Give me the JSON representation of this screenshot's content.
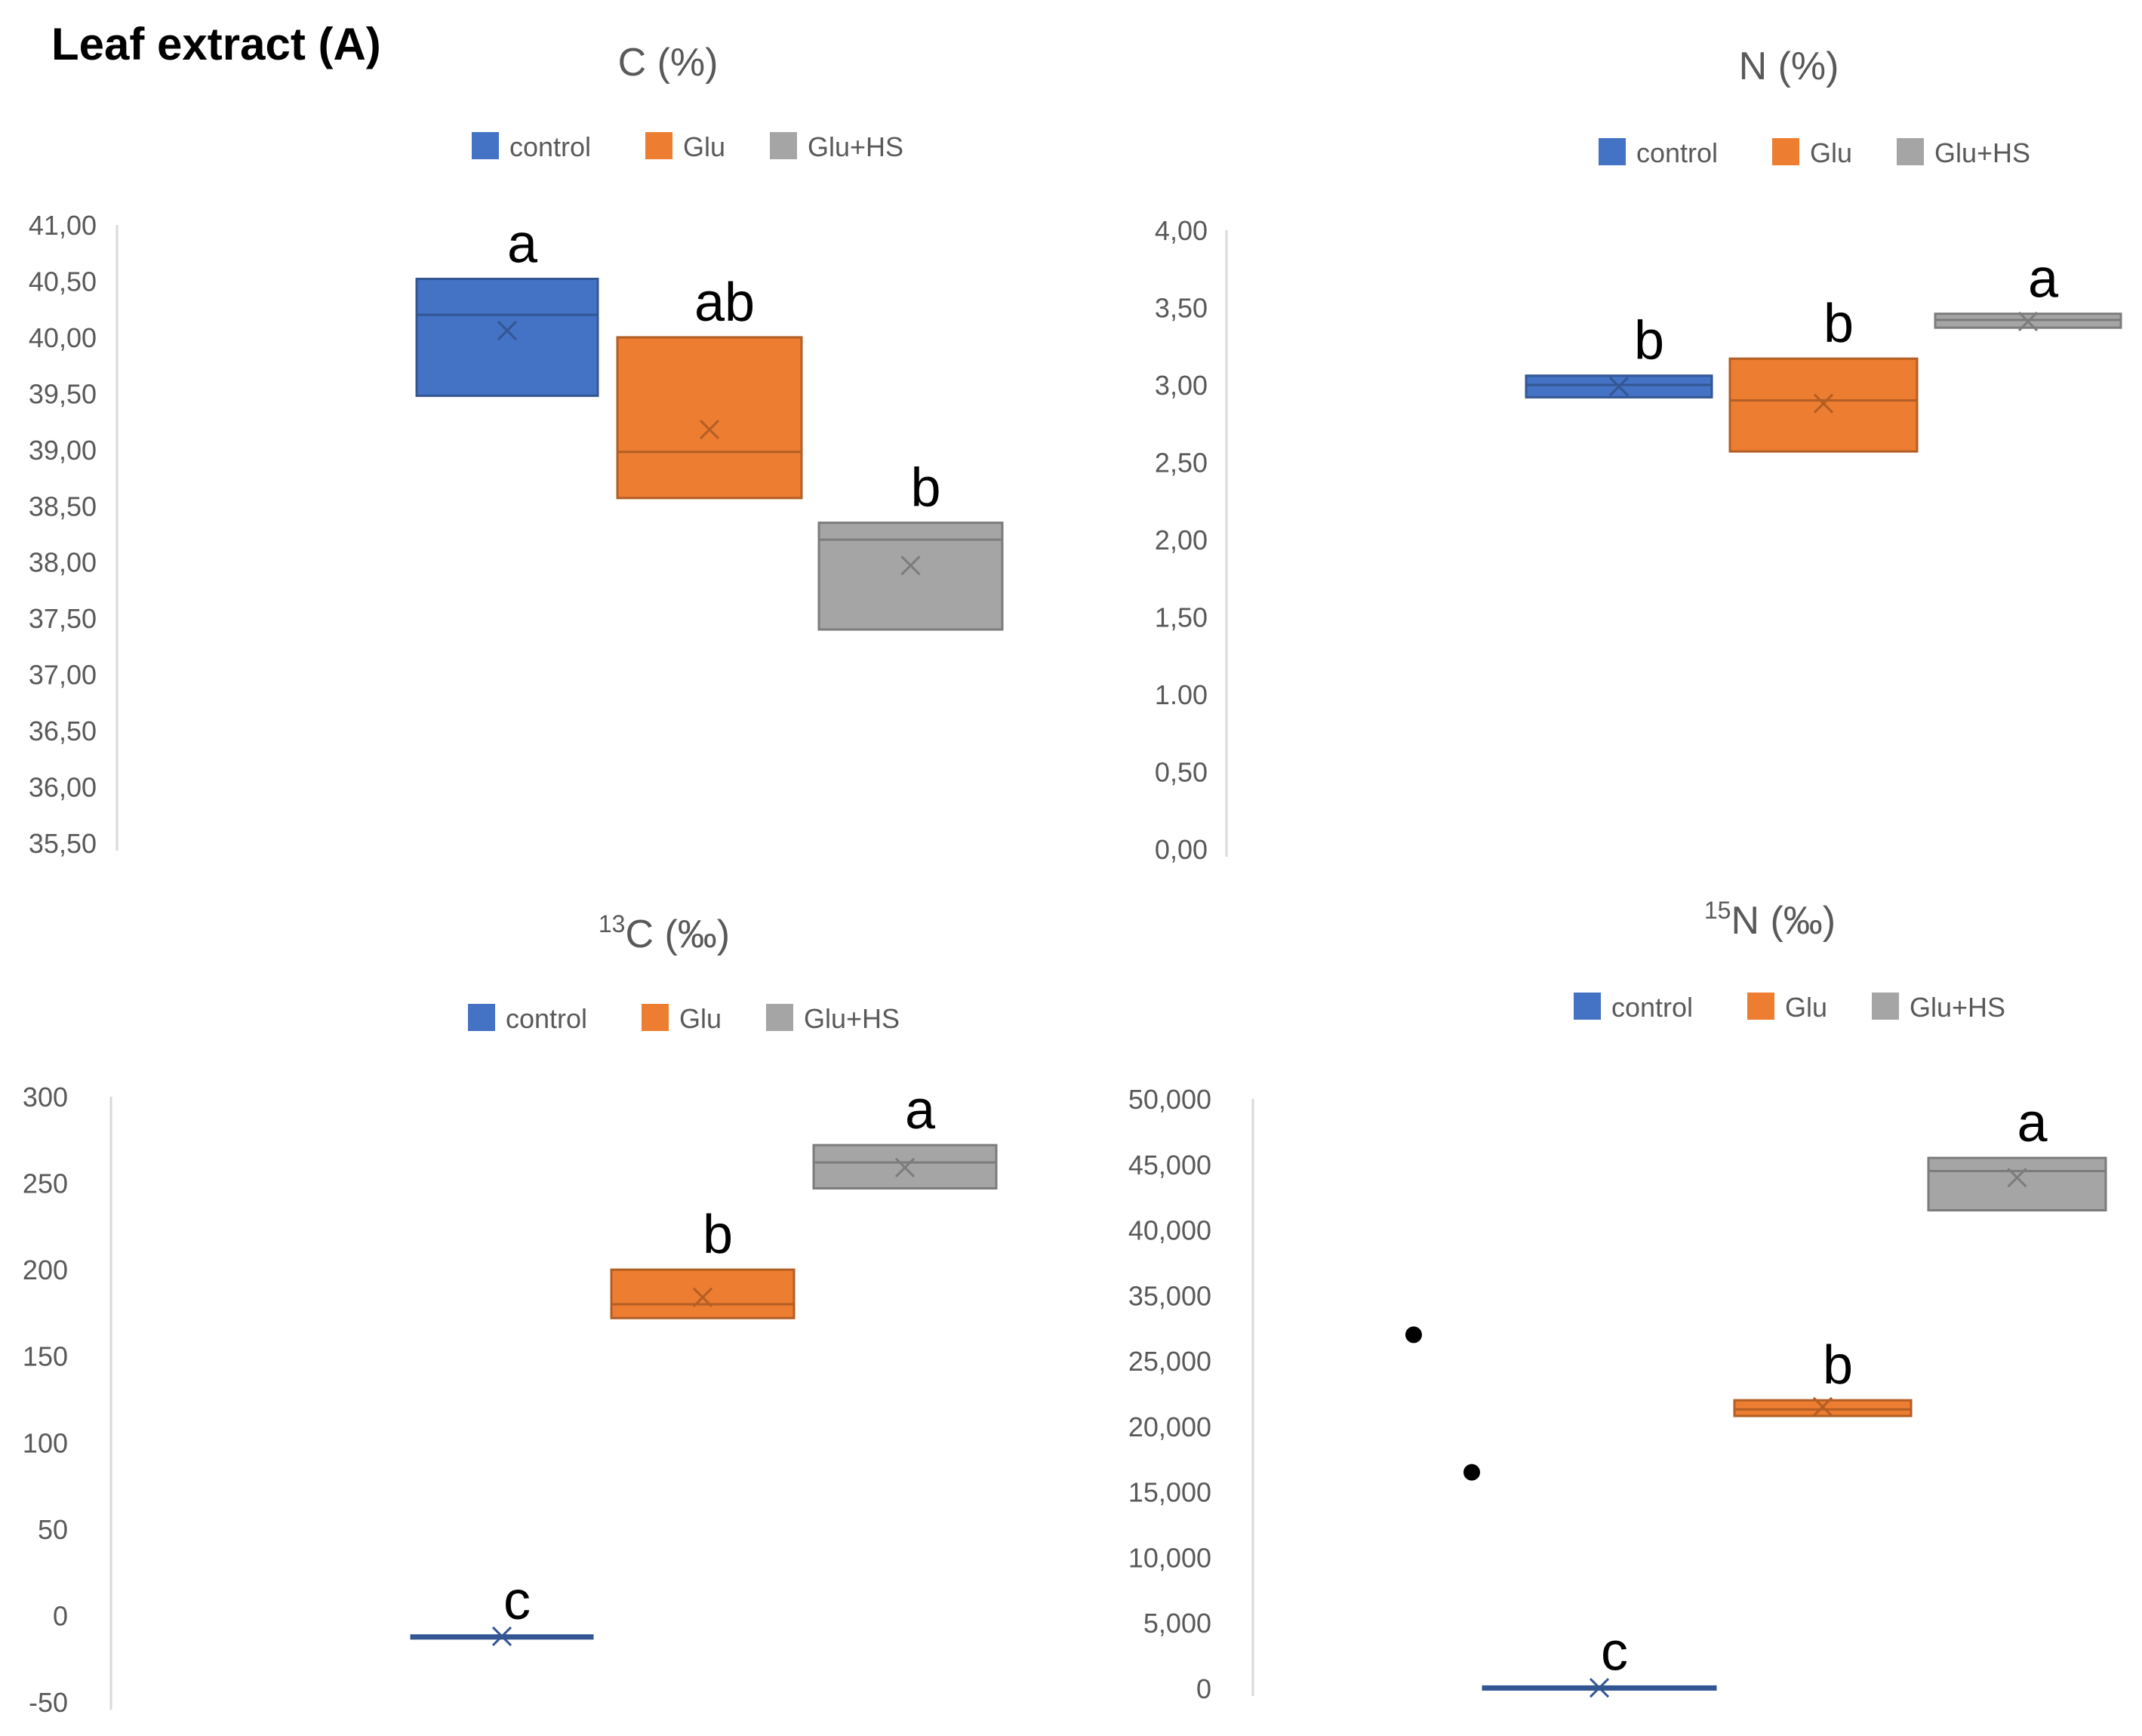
{
  "figure_title": "Leaf extract (A)",
  "colors": {
    "control": "#4472C4",
    "Glu": "#ED7D31",
    "Glu+HS": "#A5A5A5",
    "axis_text": "#595959",
    "axis_line": "#D9D9D9"
  },
  "chart_data": [
    {
      "id": "c-percent",
      "type": "boxplot",
      "title": "C (%)",
      "title_sup": "",
      "legend": [
        "control",
        "Glu",
        "Glu+HS"
      ],
      "ylim": [
        35.5,
        41.0
      ],
      "yticks": [
        35.5,
        36.0,
        36.5,
        37.0,
        37.5,
        38.0,
        38.5,
        39.0,
        39.5,
        40.0,
        40.5,
        41.0
      ],
      "ytick_labels": [
        "35,50",
        "36,00",
        "36,50",
        "37,00",
        "37,50",
        "38,00",
        "38,50",
        "39,00",
        "39,50",
        "40,00",
        "40,50",
        "41,00"
      ],
      "series": [
        {
          "name": "control",
          "q1": 39.48,
          "q3": 40.52,
          "median": 40.2,
          "mean": 40.06,
          "outliers": [],
          "letter": "a"
        },
        {
          "name": "Glu",
          "q1": 38.57,
          "q3": 40.0,
          "median": 38.98,
          "mean": 39.18,
          "outliers": [],
          "letter": "ab"
        },
        {
          "name": "Glu+HS",
          "q1": 37.4,
          "q3": 38.35,
          "median": 38.2,
          "mean": 37.97,
          "outliers": [],
          "letter": "b"
        }
      ]
    },
    {
      "id": "n-percent",
      "type": "boxplot",
      "title": "N (%)",
      "title_sup": "",
      "legend": [
        "control",
        "Glu",
        "Glu+HS"
      ],
      "ylim": [
        0.0,
        4.0
      ],
      "yticks": [
        0.0,
        0.5,
        1.0,
        1.5,
        2.0,
        2.5,
        3.0,
        3.5,
        4.0
      ],
      "ytick_labels": [
        "0,00",
        "0,50",
        "1.00",
        "1,50",
        "2,00",
        "2,50",
        "3,00",
        "3,50",
        "4,00"
      ],
      "series": [
        {
          "name": "control",
          "q1": 2.92,
          "q3": 3.06,
          "median": 3.0,
          "mean": 2.99,
          "outliers": [],
          "letter": "b"
        },
        {
          "name": "Glu",
          "q1": 2.57,
          "q3": 3.17,
          "median": 2.9,
          "mean": 2.88,
          "outliers": [],
          "letter": "b"
        },
        {
          "name": "Glu+HS",
          "q1": 3.37,
          "q3": 3.46,
          "median": 3.42,
          "mean": 3.41,
          "outliers": [],
          "letter": "a"
        }
      ]
    },
    {
      "id": "c13-permil",
      "type": "boxplot",
      "title": "C (‰)",
      "title_sup": "13",
      "legend": [
        "control",
        "Glu",
        "Glu+HS"
      ],
      "ylim": [
        -50,
        300
      ],
      "yticks": [
        -50,
        0,
        50,
        100,
        150,
        200,
        250,
        300
      ],
      "ytick_labels": [
        "-50",
        "0",
        "50",
        "100",
        "150",
        "200",
        "250",
        "300"
      ],
      "series": [
        {
          "name": "control",
          "q1": -12.5,
          "q3": -11.5,
          "median": -12,
          "mean": -12,
          "outliers": [],
          "letter": "c"
        },
        {
          "name": "Glu",
          "q1": 172,
          "q3": 200,
          "median": 180,
          "mean": 184,
          "outliers": [],
          "letter": "b"
        },
        {
          "name": "Glu+HS",
          "q1": 247,
          "q3": 272,
          "median": 262,
          "mean": 259,
          "outliers": [],
          "letter": "a"
        }
      ]
    },
    {
      "id": "n15-permil",
      "type": "boxplot",
      "title": "N (‰)",
      "title_sup": "15",
      "legend": [
        "control",
        "Glu",
        "Glu+HS"
      ],
      "ylim": [
        0,
        50000
      ],
      "yticks": [
        0,
        5000,
        10000,
        15000,
        20000,
        25000,
        35000,
        40000,
        45000,
        50000
      ],
      "ytick_labels": [
        "0",
        "5,000",
        "10,000",
        "15,000",
        "20,000",
        "25,000",
        "35,000",
        "40,000",
        "45,000",
        "50,000"
      ],
      "series": [
        {
          "name": "control",
          "q1": 0,
          "q3": 150,
          "median": 50,
          "mean": 50,
          "outliers": [],
          "letter": "c"
        },
        {
          "name": "Glu",
          "q1": 20800,
          "q3": 22000,
          "median": 21300,
          "mean": 21500,
          "outliers": [],
          "letter": "b"
        },
        {
          "name": "Glu+HS",
          "q1": 41500,
          "q3": 45500,
          "median": 44500,
          "mean": 44000,
          "outliers": [],
          "letter": "a"
        }
      ],
      "extra_points": [
        29000,
        16500
      ]
    }
  ]
}
